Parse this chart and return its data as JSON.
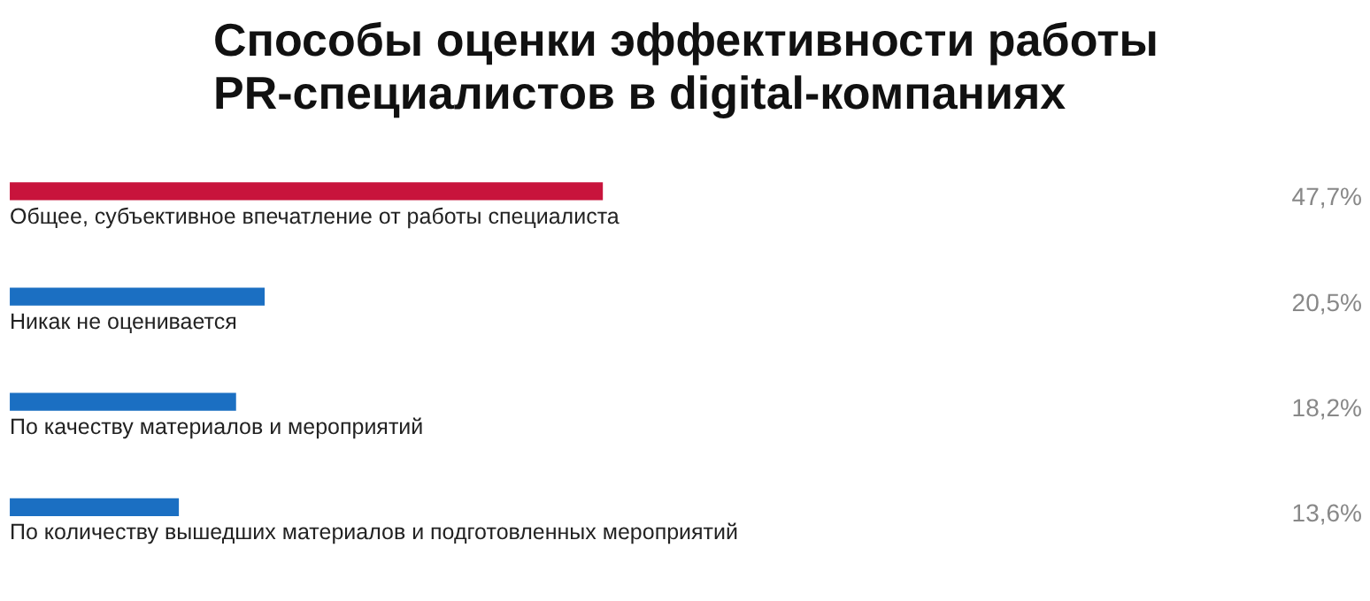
{
  "chart_data": {
    "type": "bar",
    "orientation": "horizontal",
    "title": "Способы оценки эффективности работы\nPR-специалистов в digital-компаниях",
    "categories": [
      "Общее, субъективное впечатление от работы специалиста",
      "Никак не оценивается",
      "По качеству материалов и мероприятий",
      "По количеству вышедших материалов и подготовленных мероприятий"
    ],
    "values": [
      47.7,
      20.5,
      18.2,
      13.6
    ],
    "colors": [
      "#c8143c",
      "#1b6fc2",
      "#1b6fc2",
      "#1b6fc2"
    ],
    "value_labels": [
      "47,7%",
      "20,5%",
      "18,2%",
      "13,6%"
    ],
    "grid": false
  }
}
